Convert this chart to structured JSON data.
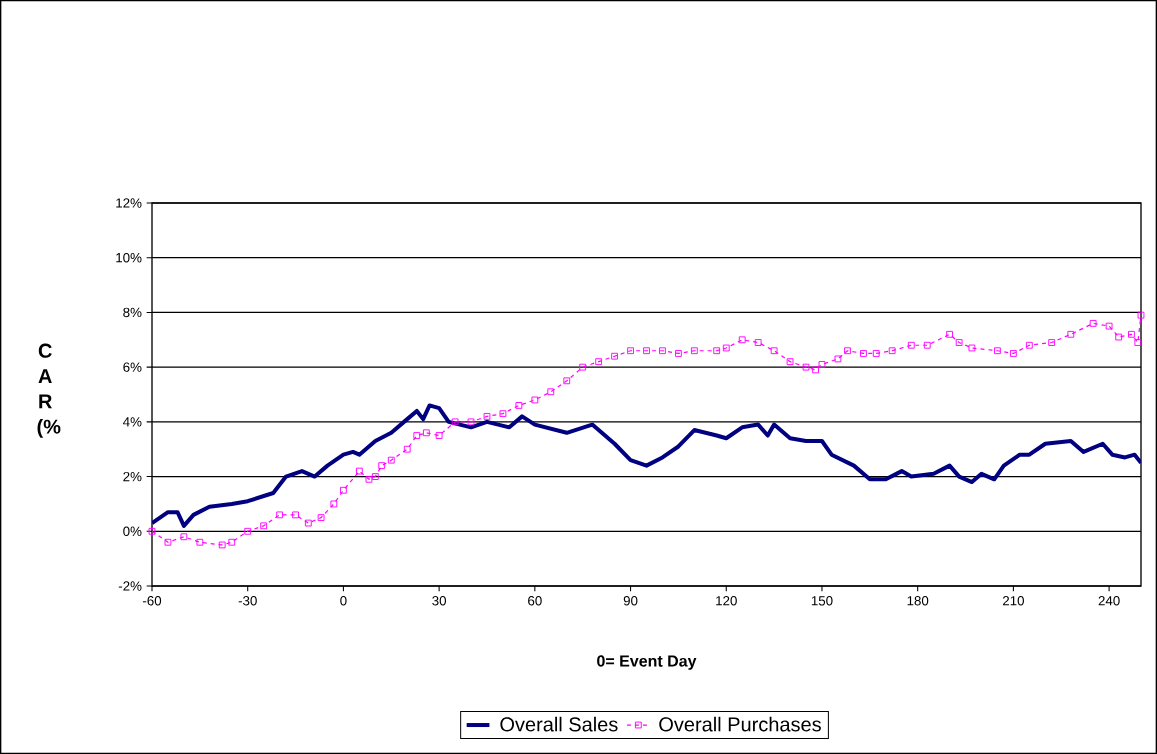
{
  "chart_data": {
    "type": "line",
    "xlabel": "0= Event Day",
    "ylabel": "C A R (%",
    "xlim": [
      -60,
      250
    ],
    "xticks": [
      -60,
      -30,
      0,
      30,
      60,
      90,
      120,
      150,
      180,
      210,
      240
    ],
    "ylim": [
      -2,
      12
    ],
    "yticks": [
      {
        "value": -2,
        "label": "-2%"
      },
      {
        "value": 0,
        "label": "0%"
      },
      {
        "value": 2,
        "label": "2%"
      },
      {
        "value": 4,
        "label": "4%"
      },
      {
        "value": 6,
        "label": "6%"
      },
      {
        "value": 8,
        "label": "8%"
      },
      {
        "value": 10,
        "label": "10%"
      },
      {
        "value": 12,
        "label": "12%"
      }
    ],
    "grid": "y",
    "legend": "bottom",
    "series": [
      {
        "name": "Overall Sales",
        "color": "#000080",
        "marker": "none",
        "line_style": "solid",
        "x": [
          -60,
          -55,
          -52,
          -50,
          -47,
          -42,
          -35,
          -30,
          -22,
          -18,
          -13,
          -9,
          -5,
          0,
          3,
          5,
          10,
          15,
          20,
          23,
          25,
          27,
          30,
          33,
          40,
          45,
          52,
          56,
          60,
          70,
          78,
          85,
          90,
          95,
          100,
          105,
          110,
          117,
          120,
          125,
          130,
          133,
          135,
          140,
          145,
          150,
          153,
          160,
          165,
          170,
          175,
          178,
          185,
          190,
          193,
          197,
          200,
          204,
          207,
          212,
          215,
          220,
          228,
          232,
          238,
          241,
          245,
          248,
          250
        ],
        "values": [
          0.3,
          0.7,
          0.7,
          0.2,
          0.6,
          0.9,
          1.0,
          1.1,
          1.4,
          2.0,
          2.2,
          2.0,
          2.4,
          2.8,
          2.9,
          2.8,
          3.3,
          3.6,
          4.1,
          4.4,
          4.1,
          4.6,
          4.5,
          4.0,
          3.8,
          4.0,
          3.8,
          4.2,
          3.9,
          3.6,
          3.9,
          3.2,
          2.6,
          2.4,
          2.7,
          3.1,
          3.7,
          3.5,
          3.4,
          3.8,
          3.9,
          3.5,
          3.9,
          3.4,
          3.3,
          3.3,
          2.8,
          2.4,
          1.9,
          1.9,
          2.2,
          2.0,
          2.1,
          2.4,
          2.0,
          1.8,
          2.1,
          1.9,
          2.4,
          2.8,
          2.8,
          3.2,
          3.3,
          2.9,
          3.2,
          2.8,
          2.7,
          2.8,
          2.5
        ]
      },
      {
        "name": "Overall Purchases",
        "color": "#ff00ff",
        "marker": "square",
        "line_style": "dashed",
        "x": [
          -60,
          -55,
          -50,
          -45,
          -38,
          -35,
          -30,
          -25,
          -20,
          -15,
          -11,
          -7,
          -3,
          0,
          5,
          8,
          10,
          12,
          15,
          20,
          23,
          26,
          30,
          35,
          40,
          45,
          50,
          55,
          60,
          65,
          70,
          75,
          80,
          85,
          90,
          95,
          100,
          105,
          110,
          117,
          120,
          125,
          130,
          135,
          140,
          145,
          148,
          150,
          155,
          158,
          163,
          167,
          172,
          178,
          183,
          190,
          193,
          197,
          205,
          210,
          215,
          222,
          228,
          235,
          240,
          243,
          247,
          249,
          250
        ],
        "values": [
          0.0,
          -0.4,
          -0.2,
          -0.4,
          -0.5,
          -0.4,
          0.0,
          0.2,
          0.6,
          0.6,
          0.3,
          0.5,
          1.0,
          1.5,
          2.2,
          1.9,
          2.0,
          2.4,
          2.6,
          3.0,
          3.5,
          3.6,
          3.5,
          4.0,
          4.0,
          4.2,
          4.3,
          4.6,
          4.8,
          5.1,
          5.5,
          6.0,
          6.2,
          6.4,
          6.6,
          6.6,
          6.6,
          6.5,
          6.6,
          6.6,
          6.7,
          7.0,
          6.9,
          6.6,
          6.2,
          6.0,
          5.9,
          6.1,
          6.3,
          6.6,
          6.5,
          6.5,
          6.6,
          6.8,
          6.8,
          7.2,
          6.9,
          6.7,
          6.6,
          6.5,
          6.8,
          6.9,
          7.2,
          7.6,
          7.5,
          7.1,
          7.2,
          6.9,
          7.9
        ]
      }
    ]
  }
}
